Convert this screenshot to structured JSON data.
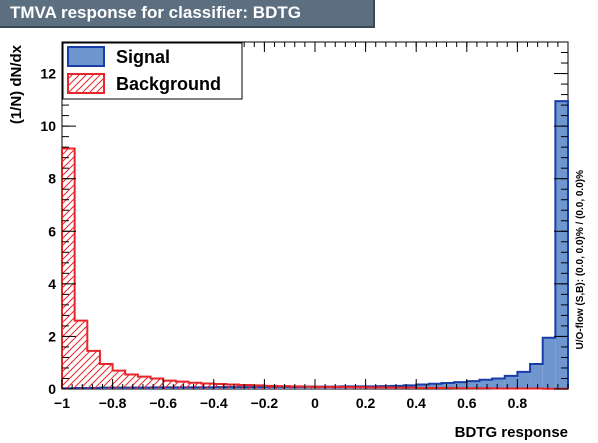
{
  "title": "TMVA response for classifier: BDTG",
  "chart_data": {
    "type": "histogram",
    "xlabel": "BDTG response",
    "ylabel": "(1/N) dN/dx",
    "overflow_label": "U/O-flow (S,B): (0.0, 0.0)% / (0.0, 0.0)%",
    "xlim": [
      -1.0,
      1.0
    ],
    "ylim": [
      0,
      13.2
    ],
    "x_ticks": [
      -1,
      -0.8,
      -0.6,
      -0.4,
      -0.2,
      0,
      0.2,
      0.4,
      0.6,
      0.8
    ],
    "x_tick_labels": [
      "−1",
      "−0.8",
      "−0.6",
      "−0.4",
      "−0.2",
      "0",
      "0.2",
      "0.4",
      "0.6",
      "0.8"
    ],
    "y_ticks": [
      0,
      2,
      4,
      6,
      8,
      10,
      12
    ],
    "y_tick_labels": [
      "0",
      "2",
      "4",
      "6",
      "8",
      "10",
      "12"
    ],
    "bin_edges": [
      -1.0,
      -0.95,
      -0.9,
      -0.85,
      -0.8,
      -0.75,
      -0.7,
      -0.65,
      -0.6,
      -0.55,
      -0.5,
      -0.45,
      -0.4,
      -0.35,
      -0.3,
      -0.25,
      -0.2,
      -0.15,
      -0.1,
      -0.05,
      0.0,
      0.05,
      0.1,
      0.15,
      0.2,
      0.25,
      0.3,
      0.35,
      0.4,
      0.45,
      0.5,
      0.55,
      0.6,
      0.65,
      0.7,
      0.75,
      0.8,
      0.85,
      0.9,
      0.95,
      1.0
    ],
    "legend": {
      "placement": "top-left"
    },
    "series": [
      {
        "name": "Signal",
        "style": "filled",
        "fill_color": "#6f96cf",
        "line_color": "#1a3ea8",
        "values": [
          0.03,
          0.04,
          0.04,
          0.05,
          0.05,
          0.05,
          0.05,
          0.06,
          0.06,
          0.06,
          0.06,
          0.06,
          0.07,
          0.07,
          0.07,
          0.07,
          0.08,
          0.08,
          0.08,
          0.09,
          0.09,
          0.09,
          0.1,
          0.1,
          0.1,
          0.11,
          0.12,
          0.14,
          0.17,
          0.2,
          0.23,
          0.26,
          0.3,
          0.35,
          0.4,
          0.5,
          0.65,
          0.95,
          1.95,
          10.95
        ]
      },
      {
        "name": "Background",
        "style": "hatched",
        "fill_color": "#e8252a",
        "line_color": "#e8252a",
        "values": [
          9.15,
          2.6,
          1.45,
          0.95,
          0.7,
          0.55,
          0.47,
          0.4,
          0.32,
          0.28,
          0.24,
          0.21,
          0.19,
          0.17,
          0.15,
          0.14,
          0.12,
          0.11,
          0.1,
          0.09,
          0.08,
          0.08,
          0.07,
          0.07,
          0.06,
          0.06,
          0.05,
          0.05,
          0.04,
          0.04,
          0.04,
          0.03,
          0.03,
          0.03,
          0.02,
          0.02,
          0.02,
          0.02,
          0.01,
          0.01
        ]
      }
    ]
  }
}
